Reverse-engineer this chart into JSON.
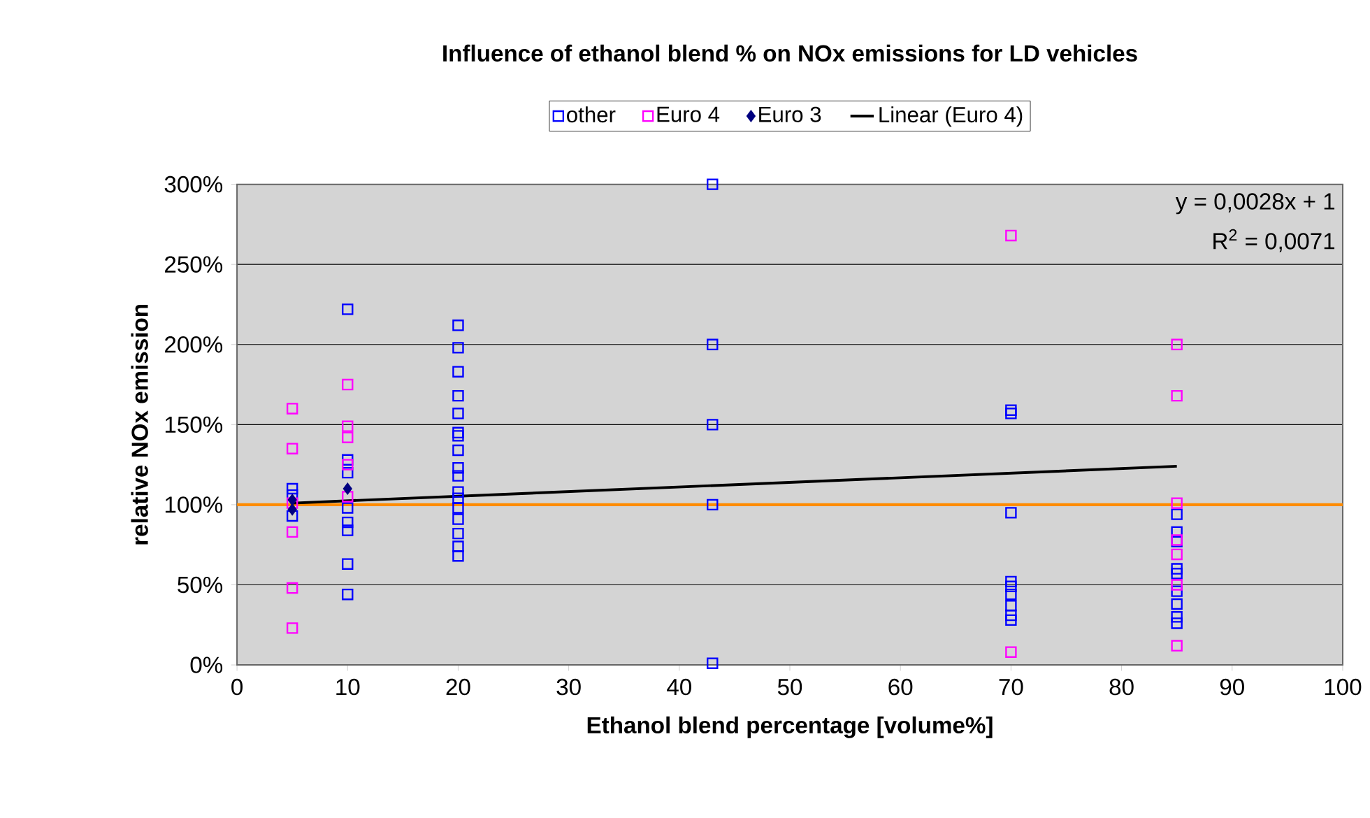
{
  "chart_data": {
    "type": "scatter",
    "title": "Influence of ethanol blend % on NOx emissions for LD vehicles",
    "xlabel": "Ethanol blend percentage [volume%]",
    "ylabel": "relative NOx emission",
    "xlim": [
      0,
      100
    ],
    "xticks": [
      0,
      10,
      20,
      30,
      40,
      50,
      60,
      70,
      80,
      90,
      100
    ],
    "ylim": [
      0,
      300
    ],
    "yticks": [
      {
        "value": 0,
        "label": "0%"
      },
      {
        "value": 50,
        "label": "50%"
      },
      {
        "value": 100,
        "label": "100%"
      },
      {
        "value": 150,
        "label": "150%"
      },
      {
        "value": 200,
        "label": "200%"
      },
      {
        "value": 250,
        "label": "250%"
      },
      {
        "value": 300,
        "label": "300%"
      }
    ],
    "grid": "y",
    "legend": "top",
    "series": [
      {
        "name": "other",
        "marker": "square",
        "color": "#0000ff",
        "x": [
          5,
          5,
          5,
          10,
          10,
          10,
          10,
          10,
          10,
          10,
          10,
          20,
          20,
          20,
          20,
          20,
          20,
          20,
          20,
          20,
          20,
          20,
          20,
          20,
          20,
          20,
          20,
          20,
          43,
          43,
          43,
          43,
          43,
          70,
          70,
          70,
          70,
          70,
          70,
          70,
          70,
          70,
          85,
          85,
          85,
          85,
          85,
          85,
          85,
          85,
          85
        ],
        "values": [
          110,
          106,
          93,
          222,
          128,
          120,
          98,
          89,
          84,
          63,
          44,
          212,
          198,
          183,
          168,
          157,
          145,
          143,
          134,
          123,
          118,
          108,
          104,
          98,
          91,
          82,
          74,
          68,
          300,
          200,
          150,
          100,
          1,
          159,
          157,
          95,
          52,
          49,
          44,
          37,
          31,
          28,
          94,
          83,
          77,
          60,
          57,
          46,
          38,
          30,
          26
        ]
      },
      {
        "name": "Euro 4",
        "marker": "square",
        "color": "#ff00ff",
        "x": [
          5,
          5,
          5,
          5,
          5,
          5,
          10,
          10,
          10,
          10,
          10,
          70,
          70,
          85,
          85,
          85,
          85,
          85,
          85,
          85
        ],
        "values": [
          160,
          135,
          101,
          83,
          48,
          23,
          175,
          149,
          142,
          125,
          105,
          268,
          8,
          200,
          168,
          101,
          78,
          69,
          50,
          12
        ]
      },
      {
        "name": "Euro 3",
        "marker": "diamond",
        "color": "#000080",
        "x": [
          5,
          5,
          10
        ],
        "values": [
          103,
          97,
          110
        ]
      },
      {
        "name": "Linear (Euro 4)",
        "type": "line",
        "marker": "none",
        "color": "#000000",
        "x": [
          5,
          85
        ],
        "values": [
          101,
          124
        ]
      }
    ],
    "ref_lines": [
      {
        "axis": "y",
        "value": 100,
        "color": "#ff8c00"
      }
    ],
    "annotations": [
      "y = 0,0028x + 1",
      "R$^{2}$ = 0,0071"
    ]
  }
}
